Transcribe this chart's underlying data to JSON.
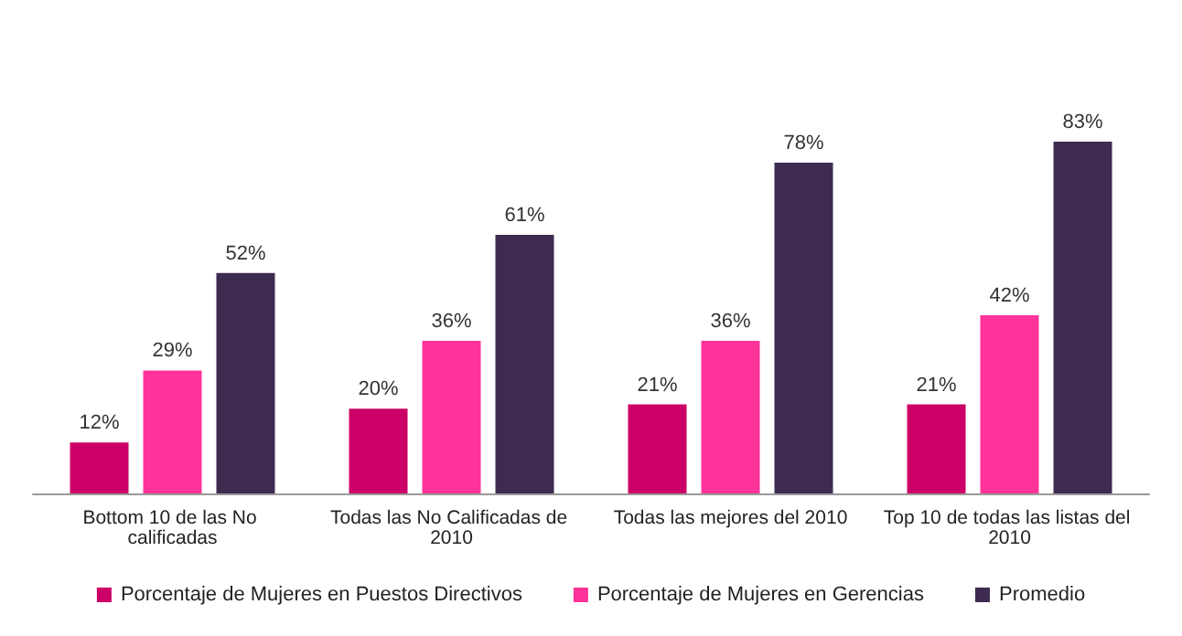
{
  "chart_data": {
    "type": "bar",
    "categories": [
      "Bottom 10 de las No calificadas",
      "Todas las No Calificadas de 2010",
      "Todas las mejores del 2010",
      "Top 10 de todas las listas del 2010"
    ],
    "series": [
      {
        "name": "Porcentaje de Mujeres en Puestos Directivos",
        "color": "#cc0066",
        "values": [
          12,
          20,
          21,
          21
        ],
        "value_labels": [
          "12%",
          "20%",
          "21%",
          "21%"
        ]
      },
      {
        "name": "Porcentaje de Mujeres en Gerencias",
        "color": "#ff3399",
        "values": [
          29,
          36,
          36,
          42
        ],
        "value_labels": [
          "29%",
          "36%",
          "36%",
          "42%"
        ]
      },
      {
        "name": "Promedio",
        "color": "#3d2b50",
        "values": [
          52,
          61,
          78,
          83
        ],
        "value_labels": [
          "52%",
          "61%",
          "78%",
          "83%"
        ]
      }
    ],
    "legend": "bottom"
  }
}
